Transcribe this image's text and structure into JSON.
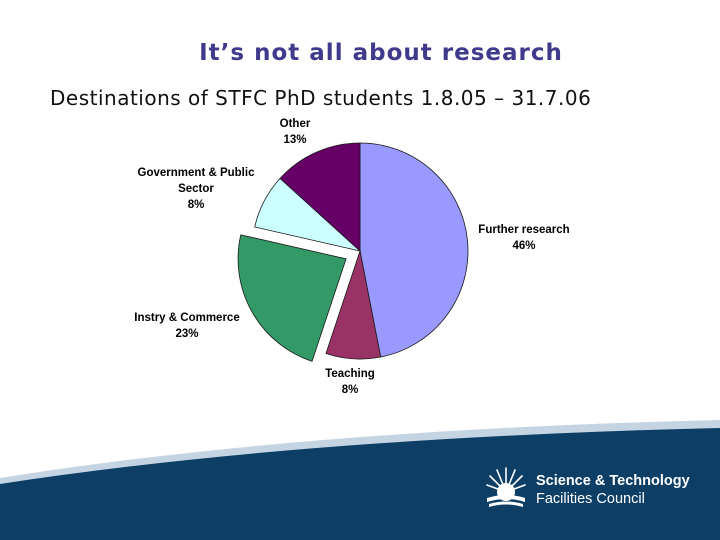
{
  "slide": {
    "title": "It’s not all about research",
    "subtitle": "Destinations of STFC PhD students 1.8.05 – 31.7.06"
  },
  "chart_data": {
    "type": "pie",
    "title": "",
    "slices": [
      {
        "label": "Further research",
        "value": 46,
        "value_label": "46%",
        "color": "#9999ff",
        "exploded": false
      },
      {
        "label": "Teaching",
        "value": 8,
        "value_label": "8%",
        "color": "#993366",
        "exploded": false
      },
      {
        "label": "Instry & Commerce",
        "value": 23,
        "value_label": "23%",
        "color": "#339966",
        "exploded": true
      },
      {
        "label": "Government & Public Sector",
        "value": 8,
        "value_label": "8%",
        "color": "#ccffff",
        "exploded": false
      },
      {
        "label": "Other",
        "value": 13,
        "value_label": "13%",
        "color": "#660066",
        "exploded": false
      }
    ],
    "label_lines": {
      "Government & Public Sector": [
        "Government & Public",
        "Sector"
      ]
    },
    "legend": "none"
  },
  "footer": {
    "logo_line1": "Science & Technology",
    "logo_line2": "Facilities Council",
    "band_color": "#0d3f66",
    "stripe_color": "#c5d4e2"
  }
}
